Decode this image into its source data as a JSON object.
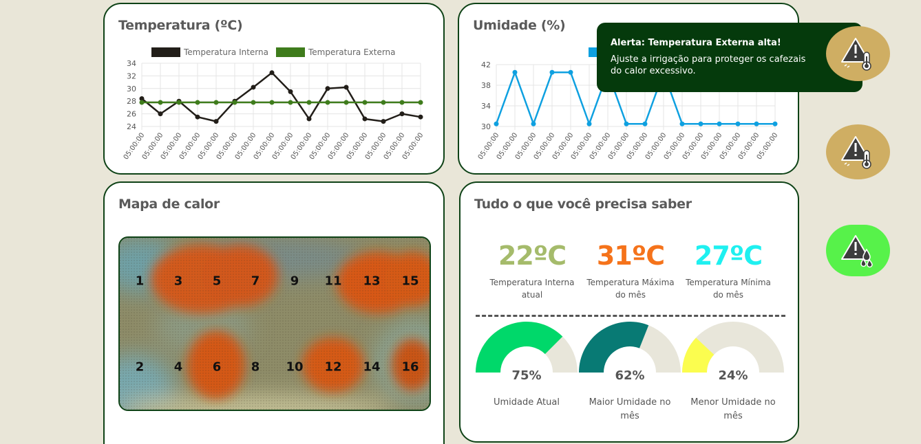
{
  "colors": {
    "card_border": "#0e4216",
    "background": "#e9e6d8",
    "temp_interna": "#221e19",
    "temp_externa": "#3f7c1c",
    "umidade_line": "#0ea0e0",
    "toast_bg": "#053a0c",
    "alert_gold": "#cfae63",
    "alert_green": "#57f24a"
  },
  "temperature_card": {
    "title": "Temperatura (ºC)",
    "chart_data": {
      "type": "line",
      "title": "Temperatura (ºC)",
      "categories": [
        "05:00:00",
        "05:00:00",
        "05:00:00",
        "05:00:00",
        "05:00:00",
        "05:00:00",
        "05:00:00",
        "05:00:00",
        "05:00:00",
        "05:00:00",
        "05:00:00",
        "05:00:00",
        "05:00:00",
        "05:00:00",
        "05:00:00",
        "05:00:00"
      ],
      "series": [
        {
          "name": "Temperatura Interna",
          "color": "#221e19",
          "values": [
            28.4,
            26.0,
            28.0,
            25.5,
            24.8,
            28.0,
            30.2,
            32.5,
            29.5,
            25.2,
            30.0,
            30.2,
            25.2,
            24.8,
            26.0,
            25.5
          ]
        },
        {
          "name": "Temperatura Externa",
          "color": "#3f7c1c",
          "values": [
            27.8,
            27.8,
            27.8,
            27.8,
            27.8,
            27.8,
            27.8,
            27.8,
            27.8,
            27.8,
            27.8,
            27.8,
            27.8,
            27.8,
            27.8,
            27.8
          ]
        }
      ],
      "yticks": [
        24,
        26,
        28,
        30,
        32,
        34
      ],
      "ylim": [
        24,
        34
      ],
      "grid": true,
      "legend": "top"
    }
  },
  "humidity_card": {
    "title": "Umidade (%)",
    "chart_data": {
      "type": "line",
      "title": "Umidade (%)",
      "categories": [
        "05:00:00",
        "05:00:00",
        "05:00:00",
        "05:00:00",
        "05:00:00",
        "05:00:00",
        "05:00:00",
        "05:00:00",
        "05:00:00",
        "05:00:00",
        "05:00:00",
        "05:00:00",
        "05:00:00",
        "05:00:00",
        "05:00:00",
        "05:00:00"
      ],
      "series": [
        {
          "color": "#0ea0e0",
          "values": [
            30.5,
            40.5,
            30.5,
            40.5,
            40.5,
            30.5,
            40.5,
            30.5,
            30.5,
            40.5,
            30.5,
            30.5,
            30.5,
            30.5,
            30.5,
            30.5
          ]
        }
      ],
      "yticks": [
        30,
        34,
        38,
        42
      ],
      "ylim": [
        30,
        42
      ],
      "grid": true,
      "legend": "top"
    }
  },
  "heatmap_card": {
    "title": "Mapa de calor",
    "sensors": [
      "1",
      "3",
      "5",
      "7",
      "9",
      "11",
      "13",
      "15",
      "2",
      "4",
      "6",
      "8",
      "10",
      "12",
      "14",
      "16"
    ]
  },
  "info_card": {
    "title": "Tudo o que você precisa saber",
    "stats": [
      {
        "value": "22ºC",
        "label": "Temperatura Interna atual",
        "color": "#a5bb6b"
      },
      {
        "value": "31ºC",
        "label": "Temperatura Máxima do mês",
        "color": "#f5731b"
      },
      {
        "value": "27ºC",
        "label": "Temperatura Mínima do mês",
        "color": "#1ff0f0"
      }
    ],
    "gauges": [
      {
        "percent": 75,
        "value_text": "75%",
        "label": "Umidade Atual",
        "color": "#00d86a"
      },
      {
        "percent": 62,
        "value_text": "62%",
        "label": "Maior Umidade no mês",
        "color": "#087a74"
      },
      {
        "percent": 24,
        "value_text": "24%",
        "label": "Menor Umidade no mês",
        "color": "#fbfd4f"
      }
    ],
    "gauge_track_color": "#e8e6da"
  },
  "alert_toast": {
    "title": "Alerta: Temperatura Externa alta!",
    "body": "Ajuste a irrigação para proteger os cafezais do calor excessivo."
  },
  "alert_buttons": [
    {
      "icon": "temperature-alert-icon",
      "color": "#cfae63"
    },
    {
      "icon": "temperature-alert-icon",
      "color": "#cfae63"
    },
    {
      "icon": "humidity-alert-icon",
      "color": "#57f24a"
    }
  ]
}
